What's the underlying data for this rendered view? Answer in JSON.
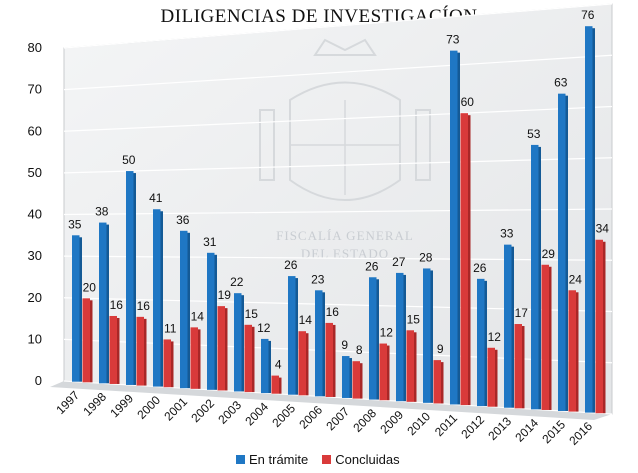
{
  "chart_data": {
    "type": "bar",
    "title": "DILIGENCIAS DE INVESTIGACÍON",
    "categories": [
      "1997",
      "1998",
      "1999",
      "2000",
      "2001",
      "2002",
      "2003",
      "2004",
      "2005",
      "2006",
      "2007",
      "2008",
      "2009",
      "2010",
      "2011",
      "2012",
      "2013",
      "2014",
      "2015",
      "2016"
    ],
    "series": [
      {
        "name": "En trámite",
        "color": "#1f77c4",
        "values": [
          35,
          38,
          50,
          41,
          36,
          31,
          22,
          12,
          26,
          23,
          9,
          26,
          27,
          28,
          73,
          26,
          33,
          53,
          63,
          76
        ]
      },
      {
        "name": "Concluidas",
        "color": "#d93a3a",
        "values": [
          20,
          16,
          16,
          11,
          14,
          19,
          15,
          4,
          14,
          16,
          8,
          12,
          15,
          9,
          60,
          12,
          17,
          29,
          24,
          34
        ]
      }
    ],
    "ylim": [
      0,
      80
    ],
    "yticks": [
      0,
      10,
      20,
      30,
      40,
      50,
      60,
      70,
      80
    ],
    "grid": true,
    "legend": "bottom",
    "watermark": [
      "FISCALÍA GENERAL",
      "DEL ESTADO"
    ]
  }
}
